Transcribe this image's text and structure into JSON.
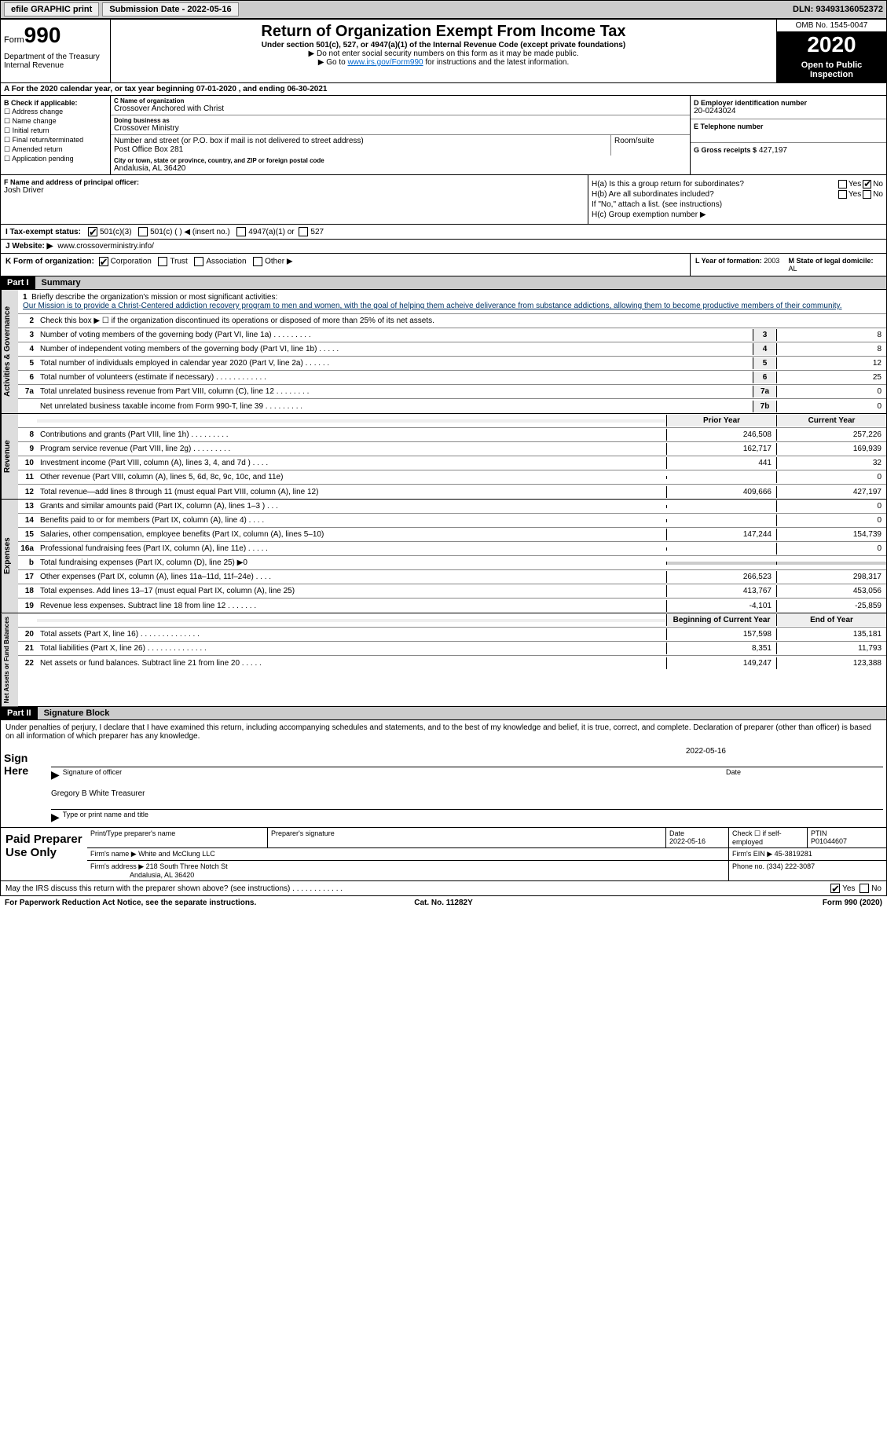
{
  "topbar": {
    "efile": "efile GRAPHIC print",
    "submission": "Submission Date - 2022-05-16",
    "dln": "DLN: 93493136052372"
  },
  "header": {
    "form_label": "Form",
    "form_num": "990",
    "dept": "Department of the Treasury Internal Revenue",
    "title": "Return of Organization Exempt From Income Tax",
    "sub": "Under section 501(c), 527, or 4947(a)(1) of the Internal Revenue Code (except private foundations)",
    "note1": "▶ Do not enter social security numbers on this form as it may be made public.",
    "note2_pre": "▶ Go to ",
    "note2_link": "www.irs.gov/Form990",
    "note2_post": " for instructions and the latest information.",
    "omb": "OMB No. 1545-0047",
    "year": "2020",
    "inspect": "Open to Public Inspection"
  },
  "row_a": "For the 2020 calendar year, or tax year beginning 07-01-2020   , and ending 06-30-2021",
  "col_b": {
    "title": "B Check if applicable:",
    "items": [
      "☐ Address change",
      "☐ Name change",
      "☐ Initial return",
      "☐ Final return/terminated",
      "☐ Amended return",
      "☐ Application pending"
    ]
  },
  "col_c": {
    "name_lbl": "C Name of organization",
    "name": "Crossover Anchored with Christ",
    "dba_lbl": "Doing business as",
    "dba": "Crossover Ministry",
    "street_lbl": "Number and street (or P.O. box if mail is not delivered to street address)",
    "street": "Post Office Box 281",
    "room_lbl": "Room/suite",
    "room": "",
    "city_lbl": "City or town, state or province, country, and ZIP or foreign postal code",
    "city": "Andalusia, AL  36420"
  },
  "col_d": {
    "ein_lbl": "D Employer identification number",
    "ein": "20-0243024",
    "phone_lbl": "E Telephone number",
    "phone": "",
    "gross_lbl": "G Gross receipts $",
    "gross": "427,197"
  },
  "col_f": {
    "lbl": "F Name and address of principal officer:",
    "name": "Josh Driver"
  },
  "col_h": {
    "a_lbl": "H(a)  Is this a group return for subordinates?",
    "b_lbl": "H(b)  Are all subordinates included?",
    "b_note": "If \"No,\" attach a list. (see instructions)",
    "c_lbl": "H(c)  Group exemption number ▶",
    "yes": "Yes",
    "no": "No"
  },
  "row_i": {
    "lbl": "I    Tax-exempt status:",
    "opts": [
      "501(c)(3)",
      "501(c) (  ) ◀ (insert no.)",
      "4947(a)(1) or",
      "527"
    ]
  },
  "row_j": {
    "lbl": "J   Website: ▶",
    "val": "www.crossoverministry.info/"
  },
  "row_k": {
    "lbl": "K Form of organization:",
    "opts": [
      "Corporation",
      "Trust",
      "Association",
      "Other ▶"
    ],
    "l_lbl": "L Year of formation:",
    "l_val": "2003",
    "m_lbl": "M State of legal domicile:",
    "m_val": "AL"
  },
  "part1": {
    "hdr": "Part I",
    "title": "Summary"
  },
  "governance": {
    "label": "Activities & Governance",
    "l1": "Briefly describe the organization's mission or most significant activities:",
    "mission": "Our Mission is to provide a Christ-Centered addiction recovery program to men and women, with the goal of helping them acheive deliverance from substance addictions, allowing them to become productive members of their community.",
    "l2": "Check this box ▶ ☐  if the organization discontinued its operations or disposed of more than 25% of its net assets.",
    "l3": "Number of voting members of the governing body (Part VI, line 1a)  .    .    .    .    .    .    .    .    .",
    "l4": "Number of independent voting members of the governing body (Part VI, line 1b)   .    .    .    .    .",
    "l5": "Total number of individuals employed in calendar year 2020 (Part V, line 2a)   .    .    .    .    .    .",
    "l6": "Total number of volunteers (estimate if necessary)   .    .    .    .    .    .    .    .    .    .    .    .",
    "l7a": "Total unrelated business revenue from Part VIII, column (C), line 12   .    .    .    .    .    .    .    .",
    "l7b": "Net unrelated business taxable income from Form 990-T, line 39   .    .    .    .    .    .    .    .    .",
    "v3": "8",
    "v4": "8",
    "v5": "12",
    "v6": "25",
    "v7a": "0",
    "v7b": "0"
  },
  "revenue": {
    "label": "Revenue",
    "hdr_py": "Prior Year",
    "hdr_cy": "Current Year",
    "rows": [
      {
        "n": "8",
        "d": "Contributions and grants (Part VIII, line 1h)   .    .    .    .    .    .    .    .    .",
        "py": "246,508",
        "cy": "257,226"
      },
      {
        "n": "9",
        "d": "Program service revenue (Part VIII, line 2g)   .    .    .    .    .    .    .    .    .",
        "py": "162,717",
        "cy": "169,939"
      },
      {
        "n": "10",
        "d": "Investment income (Part VIII, column (A), lines 3, 4, and 7d )   .    .    .    .",
        "py": "441",
        "cy": "32"
      },
      {
        "n": "11",
        "d": "Other revenue (Part VIII, column (A), lines 5, 6d, 8c, 9c, 10c, and 11e)",
        "py": "",
        "cy": "0"
      },
      {
        "n": "12",
        "d": "Total revenue—add lines 8 through 11 (must equal Part VIII, column (A), line 12)",
        "py": "409,666",
        "cy": "427,197"
      }
    ]
  },
  "expenses": {
    "label": "Expenses",
    "rows": [
      {
        "n": "13",
        "d": "Grants and similar amounts paid (Part IX, column (A), lines 1–3 )   .    .    .",
        "py": "",
        "cy": "0"
      },
      {
        "n": "14",
        "d": "Benefits paid to or for members (Part IX, column (A), line 4)   .    .    .    .",
        "py": "",
        "cy": "0"
      },
      {
        "n": "15",
        "d": "Salaries, other compensation, employee benefits (Part IX, column (A), lines 5–10)",
        "py": "147,244",
        "cy": "154,739"
      },
      {
        "n": "16a",
        "d": "Professional fundraising fees (Part IX, column (A), line 11e)   .    .    .    .    .",
        "py": "",
        "cy": "0"
      },
      {
        "n": "b",
        "d": "Total fundraising expenses (Part IX, column (D), line 25) ▶0",
        "py": "grey",
        "cy": "grey"
      },
      {
        "n": "17",
        "d": "Other expenses (Part IX, column (A), lines 11a–11d, 11f–24e)   .    .    .    .",
        "py": "266,523",
        "cy": "298,317"
      },
      {
        "n": "18",
        "d": "Total expenses. Add lines 13–17 (must equal Part IX, column (A), line 25)",
        "py": "413,767",
        "cy": "453,056"
      },
      {
        "n": "19",
        "d": "Revenue less expenses. Subtract line 18 from line 12   .    .    .    .    .    .    .",
        "py": "-4,101",
        "cy": "-25,859"
      }
    ]
  },
  "netassets": {
    "label": "Net Assets or Fund Balances",
    "hdr_b": "Beginning of Current Year",
    "hdr_e": "End of Year",
    "rows": [
      {
        "n": "20",
        "d": "Total assets (Part X, line 16)   .    .    .    .    .    .    .    .    .    .    .    .    .    .",
        "py": "157,598",
        "cy": "135,181"
      },
      {
        "n": "21",
        "d": "Total liabilities (Part X, line 26)   .    .    .    .    .    .    .    .    .    .    .    .    .    .",
        "py": "8,351",
        "cy": "11,793"
      },
      {
        "n": "22",
        "d": "Net assets or fund balances. Subtract line 21 from line 20   .    .    .    .    .",
        "py": "149,247",
        "cy": "123,388"
      }
    ]
  },
  "part2": {
    "hdr": "Part II",
    "title": "Signature Block",
    "intro": "Under penalties of perjury, I declare that I have examined this return, including accompanying schedules and statements, and to the best of my knowledge and belief, it is true, correct, and complete. Declaration of preparer (other than officer) is based on all information of which preparer has any knowledge."
  },
  "sign": {
    "lbl": "Sign Here",
    "date": "2022-05-16",
    "sig_lbl": "Signature of officer",
    "date_lbl": "Date",
    "name": "Gregory B White  Treasurer",
    "name_lbl": "Type or print name and title"
  },
  "preparer": {
    "lbl": "Paid Preparer Use Only",
    "h_name": "Print/Type preparer's name",
    "h_sig": "Preparer's signature",
    "h_date": "Date",
    "date": "2022-05-16",
    "h_chk": "Check ☐ if self-employed",
    "h_ptin": "PTIN",
    "ptin": "P01044607",
    "firm_lbl": "Firm's name   ▶",
    "firm": "White and McClung LLC",
    "ein_lbl": "Firm's EIN ▶",
    "ein": "45-3819281",
    "addr_lbl": "Firm's address ▶",
    "addr1": "218 South Three Notch St",
    "addr2": "Andalusia, AL  36420",
    "phone_lbl": "Phone no.",
    "phone": "(334) 222-3087"
  },
  "footer": {
    "discuss": "May the IRS discuss this return with the preparer shown above? (see instructions)   .    .    .    .    .    .    .    .    .    .    .    .",
    "yes": "Yes",
    "no": "No",
    "pra": "For Paperwork Reduction Act Notice, see the separate instructions.",
    "cat": "Cat. No. 11282Y",
    "form": "Form 990 (2020)"
  }
}
